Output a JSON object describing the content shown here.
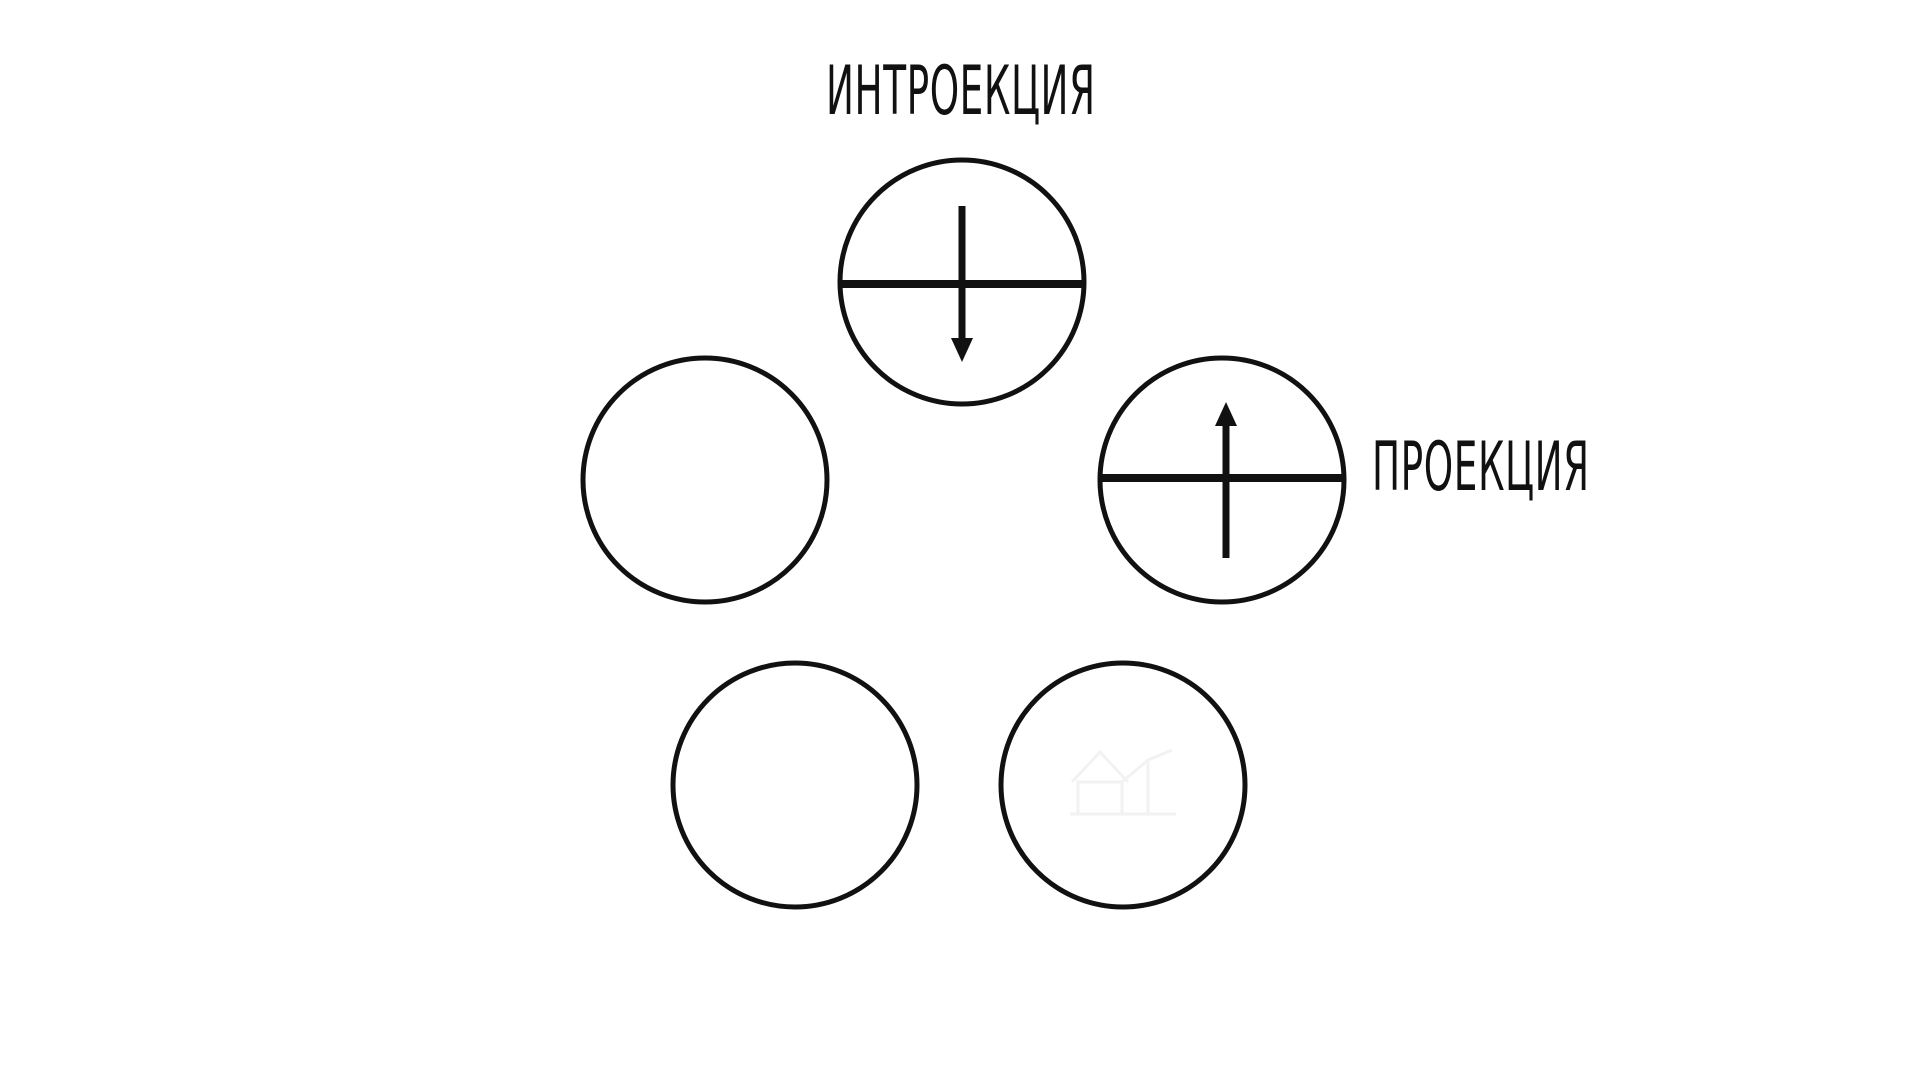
{
  "labels": {
    "introjection": "ИНТРОЕКЦИЯ",
    "projection": "ПРОЕКЦИЯ"
  },
  "colors": {
    "stroke": "#111111",
    "background": "#ffffff",
    "faint_icon": "#f2f2f2"
  },
  "icons": {
    "faint_house": "house-icon"
  }
}
